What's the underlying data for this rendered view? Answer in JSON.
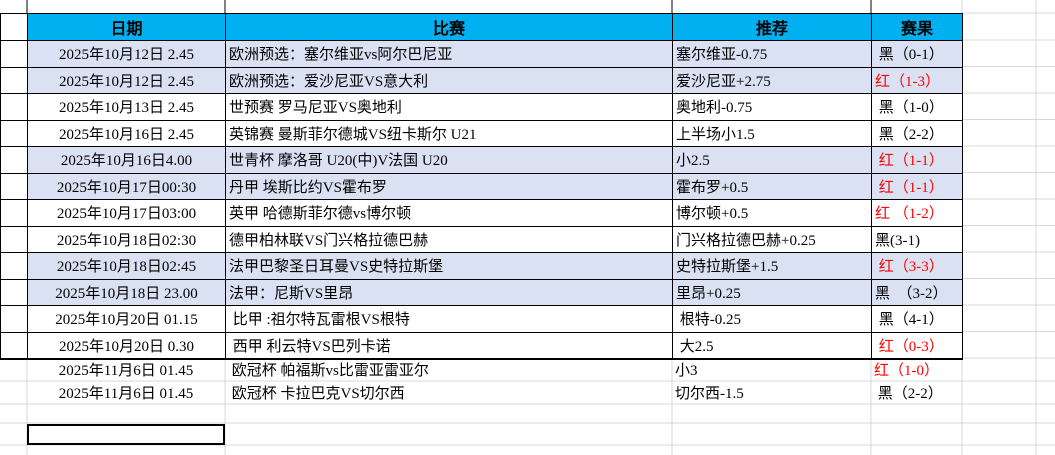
{
  "colors": {
    "header_bg": "#00b0f0",
    "shaded_row_bg": "#d9e1f2",
    "result_red": "#ff0000",
    "gridline": "#d8d8d8",
    "table_border": "#000000"
  },
  "table": {
    "headers": {
      "date": "日期",
      "match": "比赛",
      "tip": "推荐",
      "result": "赛果"
    },
    "rows": [
      {
        "date": "2025年10月12日 2.45",
        "match": "欧洲预选：塞尔维亚vs阿尔巴尼亚",
        "tip": "塞尔维亚-0.75",
        "result": " 黑（0-1）",
        "result_color": "black",
        "shaded": true,
        "outside": false
      },
      {
        "date": "2025年10月12日 2.45",
        "match": "欧洲预选：爱沙尼亚VS意大利",
        "tip": "爱沙尼亚+2.75",
        "result": "红（1-3）",
        "result_color": "red",
        "shaded": true,
        "outside": false
      },
      {
        "date": "2025年10月13日 2.45",
        "match": "世预赛 罗马尼亚VS奥地利",
        "tip": "奥地利-0.75",
        "result": " 黑（1-0）",
        "result_color": "black",
        "shaded": false,
        "outside": false
      },
      {
        "date": "2025年10月16日 2.45",
        "match": "英锦赛 曼斯菲尔德城VS纽卡斯尔 U21",
        "tip": "上半场小1.5",
        "result": " 黑（2-2）",
        "result_color": "black",
        "shaded": false,
        "outside": false
      },
      {
        "date": "2025年10月16日4.00",
        "match": "世青杯 摩洛哥 U20(中)V法国 U20",
        "tip": "小2.5",
        "result": " 红（1-1）",
        "result_color": "red",
        "shaded": true,
        "outside": false
      },
      {
        "date": "2025年10月17日00:30",
        "match": "丹甲 埃斯比约VS霍布罗",
        "tip": "霍布罗+0.5",
        "result": " 红（1-1）",
        "result_color": "red",
        "shaded": true,
        "outside": false
      },
      {
        "date": "2025年10月17日03:00",
        "match": "英甲 哈德斯菲尔德vs博尔顿",
        "tip": "博尔顿+0.5",
        "result": "红 （1-2）",
        "result_color": "red",
        "shaded": false,
        "outside": false
      },
      {
        "date": "2025年10月18日02:30",
        "match": "德甲柏林联VS门兴格拉德巴赫",
        "tip": "门兴格拉德巴赫+0.25",
        "result": "黑(3-1)",
        "result_color": "black",
        "shaded": false,
        "outside": false
      },
      {
        "date": "2025年10月18日02:45",
        "match": "法甲巴黎圣日耳曼VS史特拉斯堡",
        "tip": "史特拉斯堡+1.5",
        "result": " 红（3-3）",
        "result_color": "red",
        "shaded": true,
        "outside": false
      },
      {
        "date": "2025年10月18日 23.00",
        "match": "法甲：尼斯VS里昂",
        "tip": "里昂+0.25",
        "result": "黑　（3-2）",
        "result_color": "black",
        "shaded": true,
        "outside": false
      },
      {
        "date": "2025年10月20日 01.15",
        "match": " 比甲 :祖尔特瓦雷根VS根特",
        "tip": " 根特-0.25",
        "result": " 黑（4-1）",
        "result_color": "black",
        "shaded": false,
        "outside": false
      },
      {
        "date": "2025年10月20日 0.30",
        "match": " 西甲 利云特VS巴列卡诺",
        "tip": " 大2.5",
        "result": " 红（0-3）",
        "result_color": "red",
        "shaded": false,
        "outside": false
      },
      {
        "date": "2025年11月6日 01.45",
        "match": " 欧冠杯 帕福斯vs比雷亚雷亚尔",
        "tip": "小3",
        "result": "红（1-0）",
        "result_color": "red",
        "shaded": false,
        "outside": true
      },
      {
        "date": "2025年11月6日 01.45",
        "match": " 欧冠杯 卡拉巴克VS切尔西",
        "tip": "切尔西-1.5",
        "result": " 黑（2-2）",
        "result_color": "black",
        "shaded": false,
        "outside": true
      }
    ]
  }
}
